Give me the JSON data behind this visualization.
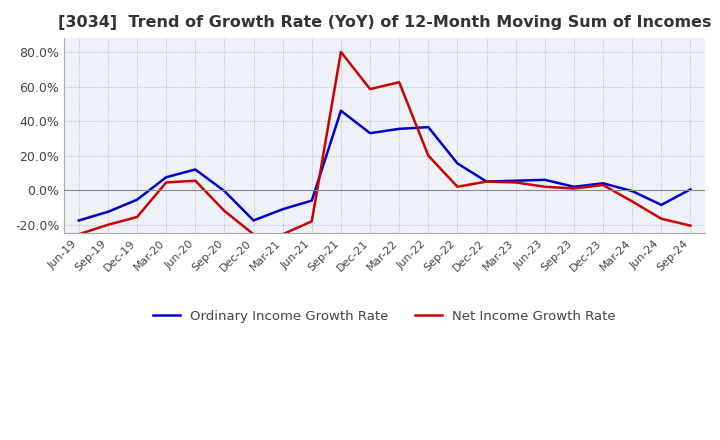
{
  "title": "[3034]  Trend of Growth Rate (YoY) of 12-Month Moving Sum of Incomes",
  "title_fontsize": 11.5,
  "ylim": [
    -0.25,
    0.88
  ],
  "yticks": [
    -0.2,
    0.0,
    0.2,
    0.4,
    0.6,
    0.8
  ],
  "background_color": "#ffffff",
  "plot_bg_color": "#eef2f8",
  "ordinary_income_color": "#0000cc",
  "net_income_color": "#cc0000",
  "legend_labels": [
    "Ordinary Income Growth Rate",
    "Net Income Growth Rate"
  ],
  "x_labels": [
    "Jun-19",
    "Sep-19",
    "Dec-19",
    "Mar-20",
    "Jun-20",
    "Sep-20",
    "Dec-20",
    "Mar-21",
    "Jun-21",
    "Sep-21",
    "Dec-21",
    "Mar-22",
    "Jun-22",
    "Sep-22",
    "Dec-22",
    "Mar-23",
    "Jun-23",
    "Sep-23",
    "Dec-23",
    "Mar-24",
    "Jun-24",
    "Sep-24"
  ],
  "ordinary_income": [
    -0.175,
    -0.125,
    -0.055,
    0.075,
    0.12,
    -0.005,
    -0.175,
    -0.11,
    -0.06,
    0.46,
    0.33,
    0.355,
    0.365,
    0.155,
    0.05,
    0.055,
    0.06,
    0.02,
    0.04,
    -0.005,
    -0.085,
    0.005
  ],
  "net_income": [
    -0.255,
    -0.2,
    -0.155,
    0.045,
    0.055,
    -0.12,
    -0.255,
    -0.255,
    -0.18,
    0.8,
    0.585,
    0.625,
    0.2,
    0.02,
    0.05,
    0.045,
    0.02,
    0.01,
    0.03,
    -0.065,
    -0.165,
    -0.205
  ]
}
